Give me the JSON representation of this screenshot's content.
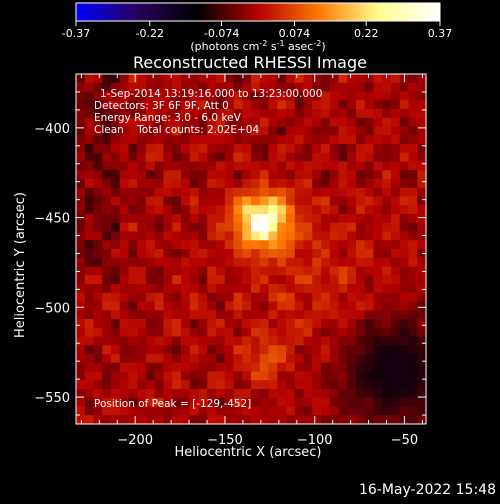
{
  "chart_data": {
    "type": "heatmap",
    "title": "Reconstructed RHESSI Image",
    "colorbar": {
      "min": -0.37,
      "max": 0.37,
      "ticks": [
        "-0.37",
        "-0.22",
        "-0.074",
        "0.074",
        "0.22",
        "0.37"
      ],
      "unit_label_parts": [
        "(photons cm",
        "-2",
        " s",
        "-1",
        " asec",
        "-2",
        ")"
      ],
      "colors": [
        "#0000ff",
        "#2a0060",
        "#000000",
        "#b40000",
        "#ff7800",
        "#ffff90",
        "#ffffff"
      ]
    },
    "info_lines": [
      "1-Sep-2014 13:19:16.000 to 13:23:00.000",
      "Detectors: 3F 6F 9F, Att 0",
      "Energy Range: 3.0 - 6.0 keV",
      "Clean    Total counts: 2.02E+04"
    ],
    "peak_text": "Position of Peak = [-129,-452]",
    "peak": [
      -129,
      -452
    ],
    "xlabel": "Heliocentric X (arcsec)",
    "ylabel": "Heliocentric Y (arcsec)",
    "xlim": [
      -233,
      -38
    ],
    "ylim": [
      -565,
      -370
    ],
    "xticks": [
      -200,
      -150,
      -100,
      -50
    ],
    "yticks": [
      -400,
      -450,
      -500,
      -550
    ],
    "xtick_labels": [
      "−200",
      "−150",
      "−100",
      "−50"
    ],
    "ytick_labels": [
      "−400",
      "−450",
      "−500",
      "−550"
    ],
    "features": [
      {
        "kind": "peak-source",
        "x": -129,
        "y": -452,
        "value": 0.37
      },
      {
        "kind": "secondary-source",
        "x": -127,
        "y": -530,
        "value": 0.16
      },
      {
        "kind": "ridge",
        "x": -100,
        "y": -488,
        "value": 0.11
      },
      {
        "kind": "negative-region",
        "x": -55,
        "y": -535,
        "value": -0.05
      }
    ]
  },
  "footer": {
    "timestamp": "16-May-2022 15:48"
  }
}
